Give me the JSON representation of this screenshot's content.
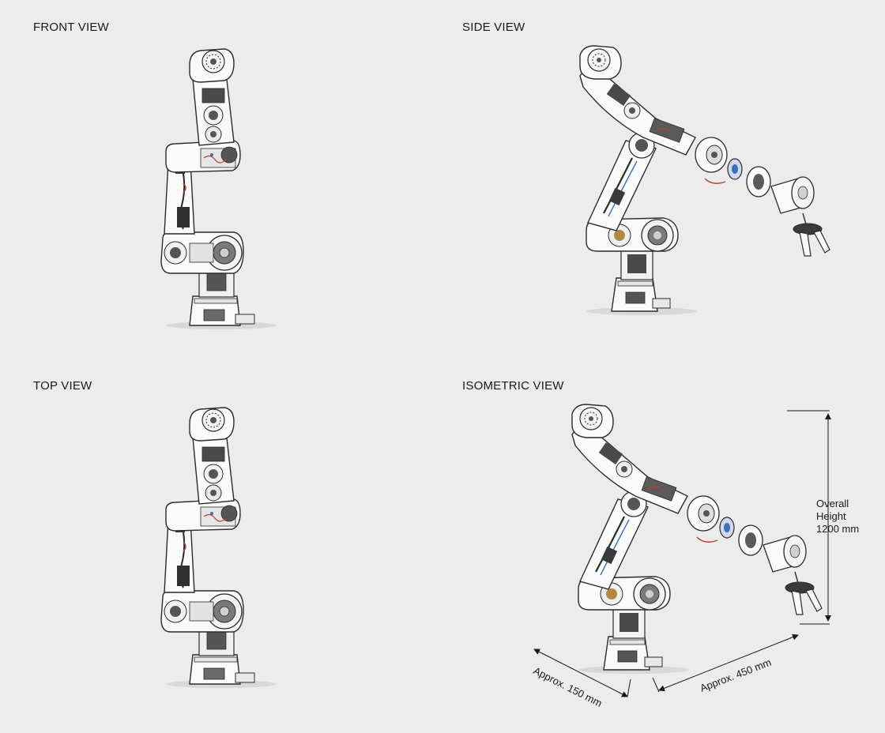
{
  "views": {
    "front": "FRONT VIEW",
    "side": "SIDE VIEW",
    "top": "TOP VIEW",
    "isometric": "ISOMETRIC VIEW"
  },
  "dimensions": {
    "height_line1": "Overall",
    "height_line2": "Height",
    "height_line3": "1200 mm",
    "depth": "Approx. 150 mm",
    "reach": "Approx. 450 mm"
  },
  "colors": {
    "background": "#ececec",
    "body": "#fafafa",
    "outline": "#2b2b2b",
    "mechanism": "#4a4a4a",
    "accent_blue": "#3b6fb6",
    "accent_red": "#b5412e",
    "accent_brass": "#b08a3e"
  }
}
